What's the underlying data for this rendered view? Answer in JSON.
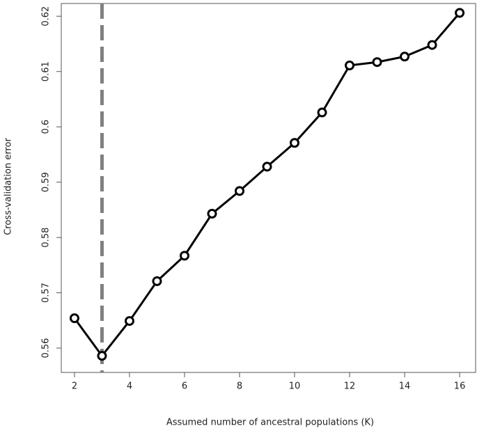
{
  "chart_data": {
    "type": "line",
    "x_label": "Assumed number of ancestral populations (K)",
    "y_label": "Cross-validation error",
    "x": [
      2,
      3,
      4,
      5,
      6,
      7,
      8,
      9,
      10,
      11,
      12,
      13,
      14,
      15,
      16
    ],
    "series": [
      {
        "color": "#000000",
        "values": [
          0.5654,
          0.5586,
          0.5649,
          0.5721,
          0.5767,
          0.5843,
          0.5884,
          0.5928,
          0.5971,
          0.6026,
          0.6111,
          0.6117,
          0.6127,
          0.6148,
          0.6206
        ]
      }
    ],
    "vline": 3,
    "vline_color": "#808080",
    "xlim": [
      1.52,
      16.58
    ],
    "xticks": [
      2,
      4,
      6,
      8,
      10,
      12,
      14,
      16
    ],
    "ylim": [
      0.5556,
      0.6223
    ],
    "yticks": [
      0.56,
      0.57,
      0.58,
      0.59,
      0.6,
      0.61,
      0.62
    ]
  }
}
